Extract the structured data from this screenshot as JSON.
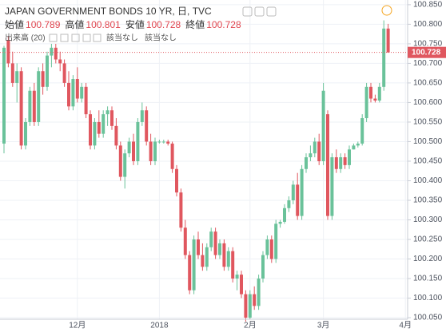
{
  "chart_data": {
    "type": "candlestick",
    "title": "JAPAN GOVERNMENT BONDS 10 YR, 日, TVC",
    "ohlc_labels": [
      "始値",
      "高値",
      "安値",
      "終値"
    ],
    "volume_label": "出来高 (20)",
    "na_labels": [
      "該当なし",
      "該当なし"
    ],
    "up_color": "#6ac29a",
    "down_color": "#e0575f",
    "ylim": [
      100.046,
      100.862
    ],
    "yticks": [
      {
        "value": 100.05,
        "label": "100.050"
      },
      {
        "value": 100.1,
        "label": "100.100"
      },
      {
        "value": 100.15,
        "label": "100.150"
      },
      {
        "value": 100.2,
        "label": "100.200"
      },
      {
        "value": 100.25,
        "label": "100.250"
      },
      {
        "value": 100.3,
        "label": "100.300"
      },
      {
        "value": 100.35,
        "label": "100.350"
      },
      {
        "value": 100.4,
        "label": "100.400"
      },
      {
        "value": 100.45,
        "label": "100.450"
      },
      {
        "value": 100.5,
        "label": "100.500"
      },
      {
        "value": 100.55,
        "label": "100.550"
      },
      {
        "value": 100.6,
        "label": "100.600"
      },
      {
        "value": 100.65,
        "label": "100.650"
      },
      {
        "value": 100.7,
        "label": "100.700"
      },
      {
        "value": 100.75,
        "label": "100.750"
      },
      {
        "value": 100.8,
        "label": "100.800"
      },
      {
        "value": 100.85,
        "label": "100.850"
      }
    ],
    "xticks": [
      {
        "value": 17,
        "label": "12月"
      },
      {
        "value": 36,
        "label": "2018"
      },
      {
        "value": 57,
        "label": "2月"
      },
      {
        "value": 74,
        "label": "3月"
      },
      {
        "value": 93,
        "label": "4月"
      }
    ],
    "ohlc": [
      [
        100.495,
        100.745,
        100.47,
        100.74
      ],
      [
        100.76,
        100.77,
        100.69,
        100.7
      ],
      [
        100.7,
        100.73,
        100.64,
        100.65
      ],
      [
        100.65,
        100.7,
        100.6,
        100.68
      ],
      [
        100.68,
        100.69,
        100.48,
        100.49
      ],
      [
        100.49,
        100.56,
        100.48,
        100.55
      ],
      [
        100.55,
        100.64,
        100.54,
        100.63
      ],
      [
        100.63,
        100.65,
        100.54,
        100.55
      ],
      [
        100.55,
        100.69,
        100.54,
        100.68
      ],
      [
        100.68,
        100.7,
        100.62,
        100.64
      ],
      [
        100.64,
        100.73,
        100.63,
        100.72
      ],
      [
        100.72,
        100.75,
        100.69,
        100.74
      ],
      [
        100.74,
        100.75,
        100.7,
        100.71
      ],
      [
        100.71,
        100.73,
        100.68,
        100.7
      ],
      [
        100.7,
        100.71,
        100.64,
        100.65
      ],
      [
        100.65,
        100.68,
        100.58,
        100.59
      ],
      [
        100.59,
        100.67,
        100.58,
        100.66
      ],
      [
        100.66,
        100.69,
        100.6,
        100.61
      ],
      [
        100.61,
        100.65,
        100.6,
        100.64
      ],
      [
        100.64,
        100.65,
        100.56,
        100.57
      ],
      [
        100.57,
        100.58,
        100.48,
        100.49
      ],
      [
        100.49,
        100.56,
        100.48,
        100.55
      ],
      [
        100.55,
        100.58,
        100.51,
        100.52
      ],
      [
        100.52,
        100.58,
        100.51,
        100.57
      ],
      [
        100.57,
        100.59,
        100.54,
        100.58
      ],
      [
        100.58,
        100.59,
        100.53,
        100.54
      ],
      [
        100.54,
        100.56,
        100.48,
        100.49
      ],
      [
        100.49,
        100.5,
        100.4,
        100.41
      ],
      [
        100.41,
        100.48,
        100.38,
        100.47
      ],
      [
        100.47,
        100.51,
        100.46,
        100.5
      ],
      [
        100.5,
        100.52,
        100.44,
        100.45
      ],
      [
        100.45,
        100.56,
        100.44,
        100.55
      ],
      [
        100.55,
        100.6,
        100.54,
        100.58
      ],
      [
        100.58,
        100.59,
        100.49,
        100.5
      ],
      [
        100.5,
        100.52,
        100.44,
        100.45
      ],
      [
        100.45,
        100.51,
        100.44,
        100.5
      ],
      [
        100.5,
        100.505,
        100.495,
        100.5
      ],
      [
        100.5,
        100.505,
        100.495,
        100.5
      ],
      [
        100.5,
        100.505,
        100.49,
        100.495
      ],
      [
        100.495,
        100.5,
        100.42,
        100.43
      ],
      [
        100.43,
        100.44,
        100.36,
        100.37
      ],
      [
        100.37,
        100.38,
        100.27,
        100.28
      ],
      [
        100.28,
        100.3,
        100.2,
        100.21
      ],
      [
        100.21,
        100.22,
        100.11,
        100.12
      ],
      [
        100.12,
        100.26,
        100.11,
        100.25
      ],
      [
        100.25,
        100.27,
        100.2,
        100.21
      ],
      [
        100.21,
        100.24,
        100.17,
        100.18
      ],
      [
        100.18,
        100.24,
        100.17,
        100.23
      ],
      [
        100.23,
        100.28,
        100.22,
        100.27
      ],
      [
        100.27,
        100.28,
        100.2,
        100.21
      ],
      [
        100.21,
        100.25,
        100.2,
        100.24
      ],
      [
        100.24,
        100.25,
        100.17,
        100.18
      ],
      [
        100.18,
        100.23,
        100.17,
        100.22
      ],
      [
        100.22,
        100.23,
        100.14,
        100.15
      ],
      [
        100.15,
        100.17,
        100.12,
        100.16
      ],
      [
        100.16,
        100.17,
        100.1,
        100.11
      ],
      [
        100.11,
        100.12,
        100.04,
        100.05
      ],
      [
        100.05,
        100.12,
        100.045,
        100.11
      ],
      [
        100.11,
        100.13,
        100.07,
        100.08
      ],
      [
        100.08,
        100.16,
        100.07,
        100.15
      ],
      [
        100.15,
        100.22,
        100.14,
        100.21
      ],
      [
        100.21,
        100.26,
        100.2,
        100.25
      ],
      [
        100.25,
        100.26,
        100.19,
        100.2
      ],
      [
        100.2,
        100.3,
        100.19,
        100.29
      ],
      [
        100.29,
        100.3,
        100.28,
        100.295
      ],
      [
        100.295,
        100.34,
        100.29,
        100.33
      ],
      [
        100.33,
        100.36,
        100.32,
        100.35
      ],
      [
        100.35,
        100.4,
        100.34,
        100.39
      ],
      [
        100.39,
        100.42,
        100.3,
        100.31
      ],
      [
        100.31,
        100.44,
        100.3,
        100.43
      ],
      [
        100.43,
        100.47,
        100.42,
        100.46
      ],
      [
        100.46,
        100.49,
        100.45,
        100.47
      ],
      [
        100.47,
        100.51,
        100.46,
        100.5
      ],
      [
        100.5,
        100.52,
        100.44,
        100.45
      ],
      [
        100.45,
        100.65,
        100.44,
        100.63
      ],
      [
        100.57,
        100.58,
        100.3,
        100.31
      ],
      [
        100.31,
        100.47,
        100.3,
        100.46
      ],
      [
        100.46,
        100.48,
        100.42,
        100.43
      ],
      [
        100.43,
        100.47,
        100.42,
        100.46
      ],
      [
        100.46,
        100.47,
        100.43,
        100.44
      ],
      [
        100.44,
        100.49,
        100.43,
        100.48
      ],
      [
        100.48,
        100.495,
        100.48,
        100.49
      ],
      [
        100.49,
        100.5,
        100.485,
        100.495
      ],
      [
        100.495,
        100.57,
        100.49,
        100.56
      ],
      [
        100.56,
        100.65,
        100.55,
        100.64
      ],
      [
        100.64,
        100.65,
        100.6,
        100.61
      ],
      [
        100.61,
        100.62,
        100.6,
        100.605
      ],
      [
        100.605,
        100.65,
        100.6,
        100.64
      ],
      [
        100.64,
        100.81,
        100.63,
        100.789
      ],
      [
        100.789,
        100.801,
        100.728,
        100.728
      ]
    ]
  }
}
